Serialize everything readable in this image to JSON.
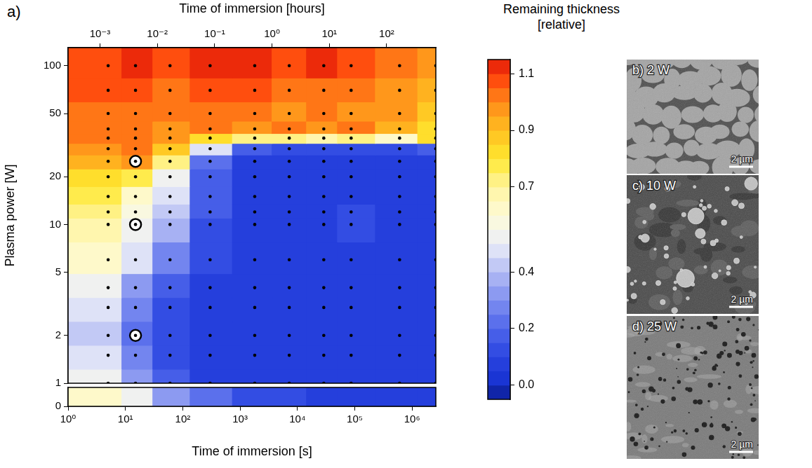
{
  "chart_data": {
    "type": "heatmap",
    "panel_label": "a)",
    "xlabel": "Time of immersion [s]",
    "x2label": "Time of immersion [hours]",
    "ylabel": "Plasma power [W]",
    "log": true,
    "marker": "circle",
    "x": [
      5,
      15,
      60,
      300,
      1800,
      7200,
      28800,
      86400,
      604800,
      2592000
    ],
    "xlim": [
      1,
      2592000
    ],
    "xticks": [
      {
        "value": 1,
        "label": "10⁰"
      },
      {
        "value": 10,
        "label": "10¹"
      },
      {
        "value": 100,
        "label": "10²"
      },
      {
        "value": 1000,
        "label": "10³"
      },
      {
        "value": 10000,
        "label": "10⁴"
      },
      {
        "value": 100000,
        "label": "10⁵"
      },
      {
        "value": 1000000,
        "label": "10⁶"
      }
    ],
    "x2lim": [
      0.000277778,
      720
    ],
    "x2ticks": [
      {
        "value": 0.001,
        "label": "10⁻³"
      },
      {
        "value": 0.01,
        "label": "10⁻²"
      },
      {
        "value": 0.1,
        "label": "10⁻¹"
      },
      {
        "value": 1,
        "label": "10⁰"
      },
      {
        "value": 10,
        "label": "10¹"
      },
      {
        "value": 100,
        "label": "10²"
      }
    ],
    "y": [
      1,
      1.5,
      2,
      3,
      4,
      6,
      10,
      12,
      15,
      20,
      25,
      30,
      35,
      40,
      50,
      70,
      100
    ],
    "ylim": [
      1,
      130
    ],
    "yticks": [
      1,
      2,
      5,
      10,
      20,
      50,
      100
    ],
    "values": [
      [
        0.5,
        0.3,
        0.15,
        0.05,
        0.05,
        0.05,
        0.05,
        0.05,
        0.05,
        0.05
      ],
      [
        0.45,
        0.25,
        0.1,
        0.05,
        0.05,
        0.05,
        0.05,
        0.05,
        0.05,
        0.05
      ],
      [
        0.4,
        0.2,
        0.1,
        0.05,
        0.05,
        0.05,
        0.05,
        0.05,
        0.05,
        0.05
      ],
      [
        0.45,
        0.25,
        0.1,
        0.05,
        0.05,
        0.05,
        0.05,
        0.05,
        0.05,
        0.05
      ],
      [
        0.5,
        0.3,
        0.15,
        0.05,
        0.05,
        0.05,
        0.05,
        0.05,
        0.05,
        0.05
      ],
      [
        0.6,
        0.45,
        0.25,
        0.1,
        0.05,
        0.05,
        0.05,
        0.05,
        0.05,
        0.05
      ],
      [
        0.65,
        0.5,
        0.35,
        0.1,
        0.05,
        0.05,
        0.05,
        0.1,
        0.05,
        0.05
      ],
      [
        0.7,
        0.55,
        0.4,
        0.15,
        0.05,
        0.05,
        0.05,
        0.1,
        0.05,
        0.05
      ],
      [
        0.75,
        0.6,
        0.45,
        0.15,
        0.05,
        0.05,
        0.05,
        0.05,
        0.05,
        0.05
      ],
      [
        0.8,
        0.75,
        0.5,
        0.15,
        0.05,
        0.05,
        0.05,
        0.05,
        0.05,
        0.05
      ],
      [
        0.9,
        0.95,
        0.7,
        0.2,
        0.05,
        0.05,
        0.05,
        0.05,
        0.05,
        0.05
      ],
      [
        0.95,
        1.0,
        0.85,
        0.45,
        0.15,
        0.1,
        0.1,
        0.1,
        0.1,
        0.15
      ],
      [
        1.0,
        1.0,
        0.95,
        0.8,
        0.7,
        0.7,
        0.65,
        0.7,
        0.6,
        0.8
      ],
      [
        1.0,
        1.0,
        0.95,
        1.0,
        0.95,
        1.0,
        0.95,
        1.0,
        0.9,
        0.8
      ],
      [
        1.0,
        1.0,
        1.0,
        1.0,
        1.0,
        0.95,
        1.0,
        0.95,
        0.95,
        0.85
      ],
      [
        1.05,
        1.05,
        1.0,
        1.05,
        1.05,
        1.0,
        1.0,
        1.0,
        0.95,
        0.9
      ],
      [
        1.05,
        1.1,
        1.05,
        1.1,
        1.1,
        1.05,
        1.1,
        1.05,
        1.0,
        0.95
      ]
    ],
    "y_low": [
      0
    ],
    "ylim_low": [
      0,
      1
    ],
    "yticks_low": [
      0
    ],
    "values_low": [
      [
        0.6,
        0.5,
        0.3,
        0.2,
        0.1,
        0.1,
        0.05,
        0.05,
        0.05,
        0.05
      ]
    ],
    "highlighted": [
      {
        "x": 15,
        "y": 2
      },
      {
        "x": 15,
        "y": 10
      },
      {
        "x": 15,
        "y": 25
      }
    ],
    "colorbar": {
      "title": [
        "Remaining thickness",
        "[relative]"
      ],
      "range": [
        -0.05,
        1.15
      ],
      "ticks": [
        {
          "value": 0,
          "label": "0.0"
        },
        0.2,
        0.4,
        0.7,
        0.9,
        1.1
      ]
    }
  },
  "images": [
    {
      "label": "b) 2 W",
      "scale_bar": "2 µm"
    },
    {
      "label": "c) 10 W",
      "scale_bar": "2 µm"
    },
    {
      "label": "d) 25 W",
      "scale_bar": "2 µm"
    }
  ]
}
